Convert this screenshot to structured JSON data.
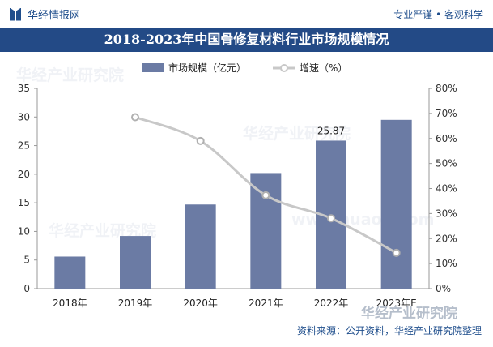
{
  "header": {
    "logo_text": "华经情报网",
    "slogan": "专业严谨 • 客观科学",
    "title": "2018-2023年中国骨修复材料行业市场规模情况"
  },
  "watermark": {
    "text": "华经产业研究院",
    "url": "www.huaon.com"
  },
  "source": "资料来源：公开资料，华经产业研究院整理",
  "colors": {
    "bar": "#6b7ba4",
    "line": "#c8c8c8",
    "title_band": "#234a86",
    "brand": "#1f4e8c"
  },
  "chart_data": {
    "type": "bar+line",
    "categories": [
      "2018年",
      "2019年",
      "2020年",
      "2021年",
      "2022年",
      "2023年E"
    ],
    "series": [
      {
        "name": "市场规模（亿元）",
        "type": "bar",
        "axis": "left",
        "values": [
          5.6,
          9.2,
          14.7,
          20.2,
          25.87,
          29.5
        ]
      },
      {
        "name": "增速（%）",
        "type": "line",
        "axis": "right",
        "values": [
          null,
          68.5,
          59.0,
          37.3,
          28.1,
          14.3
        ]
      }
    ],
    "data_labels": [
      {
        "series": 0,
        "index": 4,
        "text": "25.87"
      }
    ],
    "y_left": {
      "min": 0,
      "max": 35,
      "ticks": [
        "0",
        "5",
        "10",
        "15",
        "20",
        "25",
        "30",
        "35"
      ]
    },
    "y_right": {
      "min": 0,
      "max": 80,
      "ticks": [
        "0%",
        "10%",
        "20%",
        "30%",
        "40%",
        "50%",
        "60%",
        "70%",
        "80%"
      ]
    },
    "legend_position": "top-center",
    "grid": false
  }
}
